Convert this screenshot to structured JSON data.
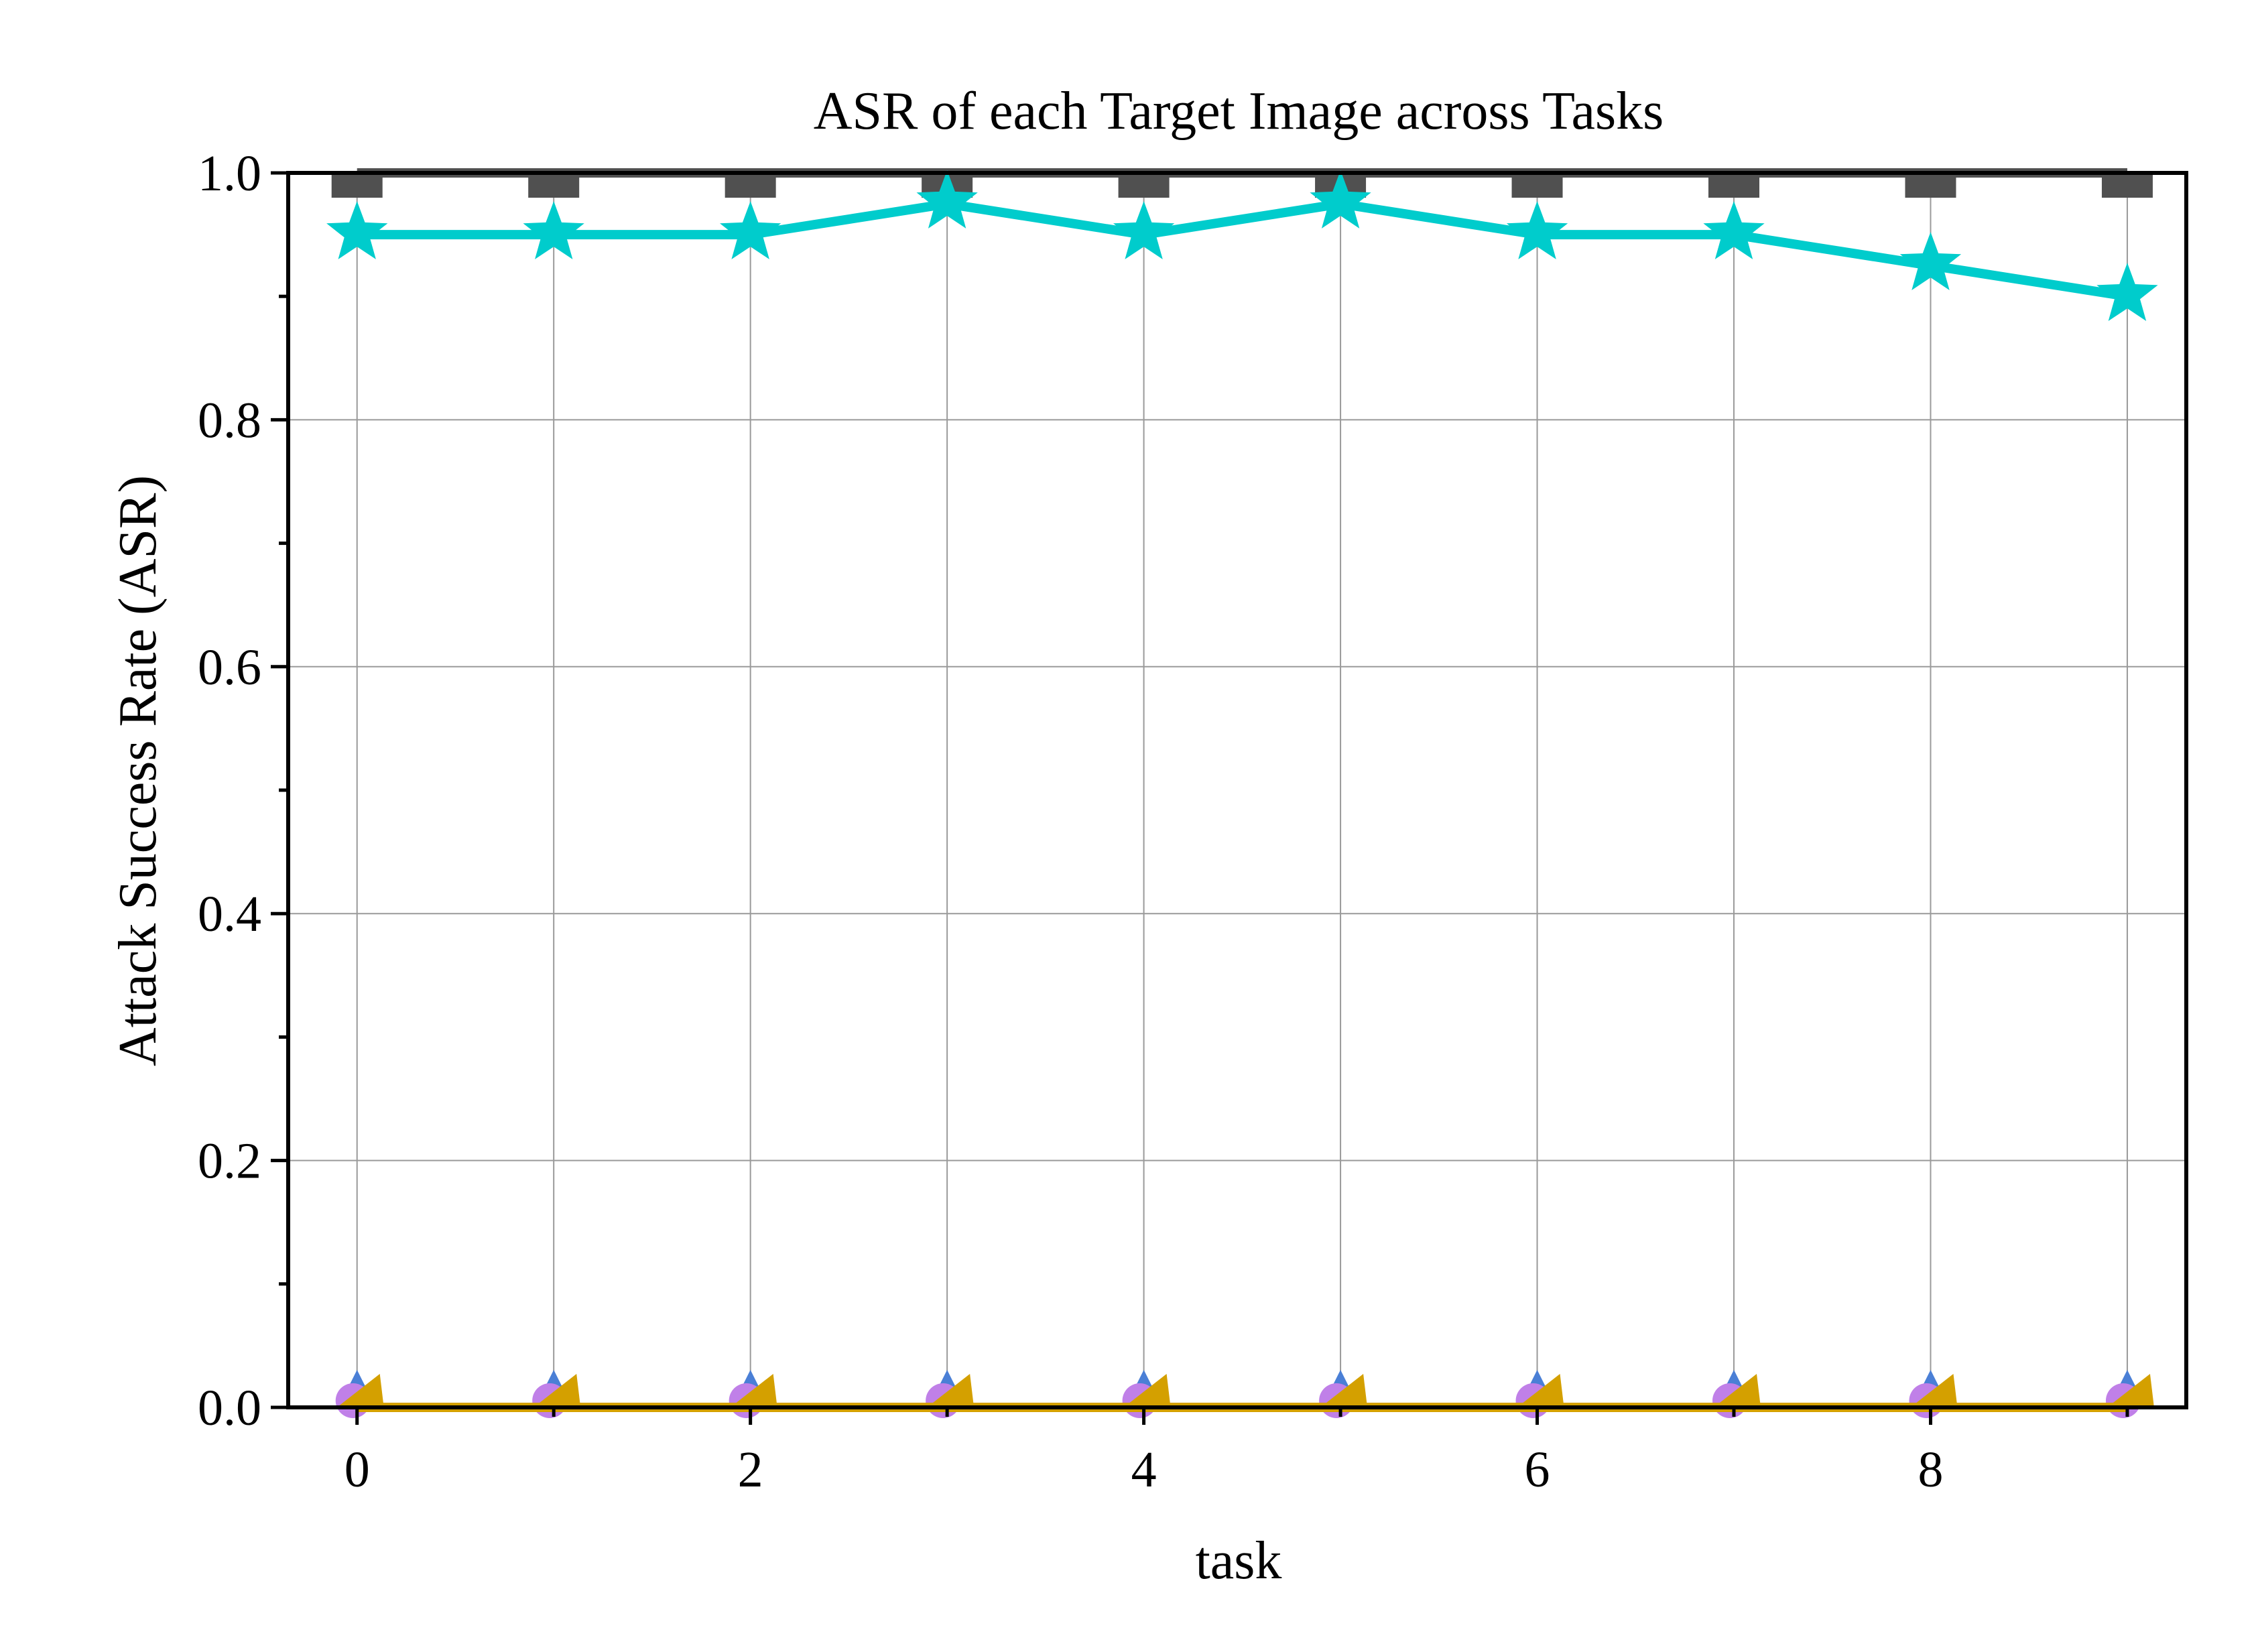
{
  "chart_data": {
    "type": "line",
    "title": "ASR of each Target Image across Tasks",
    "xlabel": "task",
    "ylabel": "Attack Success Rate (ASR)",
    "xlim": [
      -0.35,
      9.3
    ],
    "ylim": [
      0,
      1.0
    ],
    "x": [
      0,
      1,
      2,
      3,
      4,
      5,
      6,
      7,
      8,
      9
    ],
    "xticks": [
      0,
      2,
      4,
      6,
      8
    ],
    "yticks": [
      0.0,
      0.2,
      0.4,
      0.6,
      0.8,
      1.0
    ],
    "grid": true,
    "legend": "none",
    "series": [
      {
        "color": "#505050",
        "marker": "square",
        "values": [
          1.0,
          1.0,
          1.0,
          1.0,
          1.0,
          1.0,
          1.0,
          1.0,
          1.0,
          1.0
        ]
      },
      {
        "color": "#00CCCC",
        "marker": "star",
        "values": [
          0.95,
          0.95,
          0.95,
          0.975,
          0.95,
          0.975,
          0.95,
          0.95,
          0.925,
          0.9
        ]
      },
      {
        "color": "#4A7FD6",
        "marker": "diamond",
        "values": [
          0,
          0,
          0,
          0,
          0,
          0,
          0,
          0,
          0,
          0
        ]
      },
      {
        "color": "#C080E8",
        "marker": "circle",
        "values": [
          0,
          0,
          0,
          0,
          0,
          0,
          0,
          0,
          0,
          0
        ]
      },
      {
        "color": "#D4A000",
        "marker": "triangle",
        "values": [
          0,
          0,
          0,
          0,
          0,
          0,
          0,
          0,
          0,
          0
        ]
      }
    ]
  }
}
